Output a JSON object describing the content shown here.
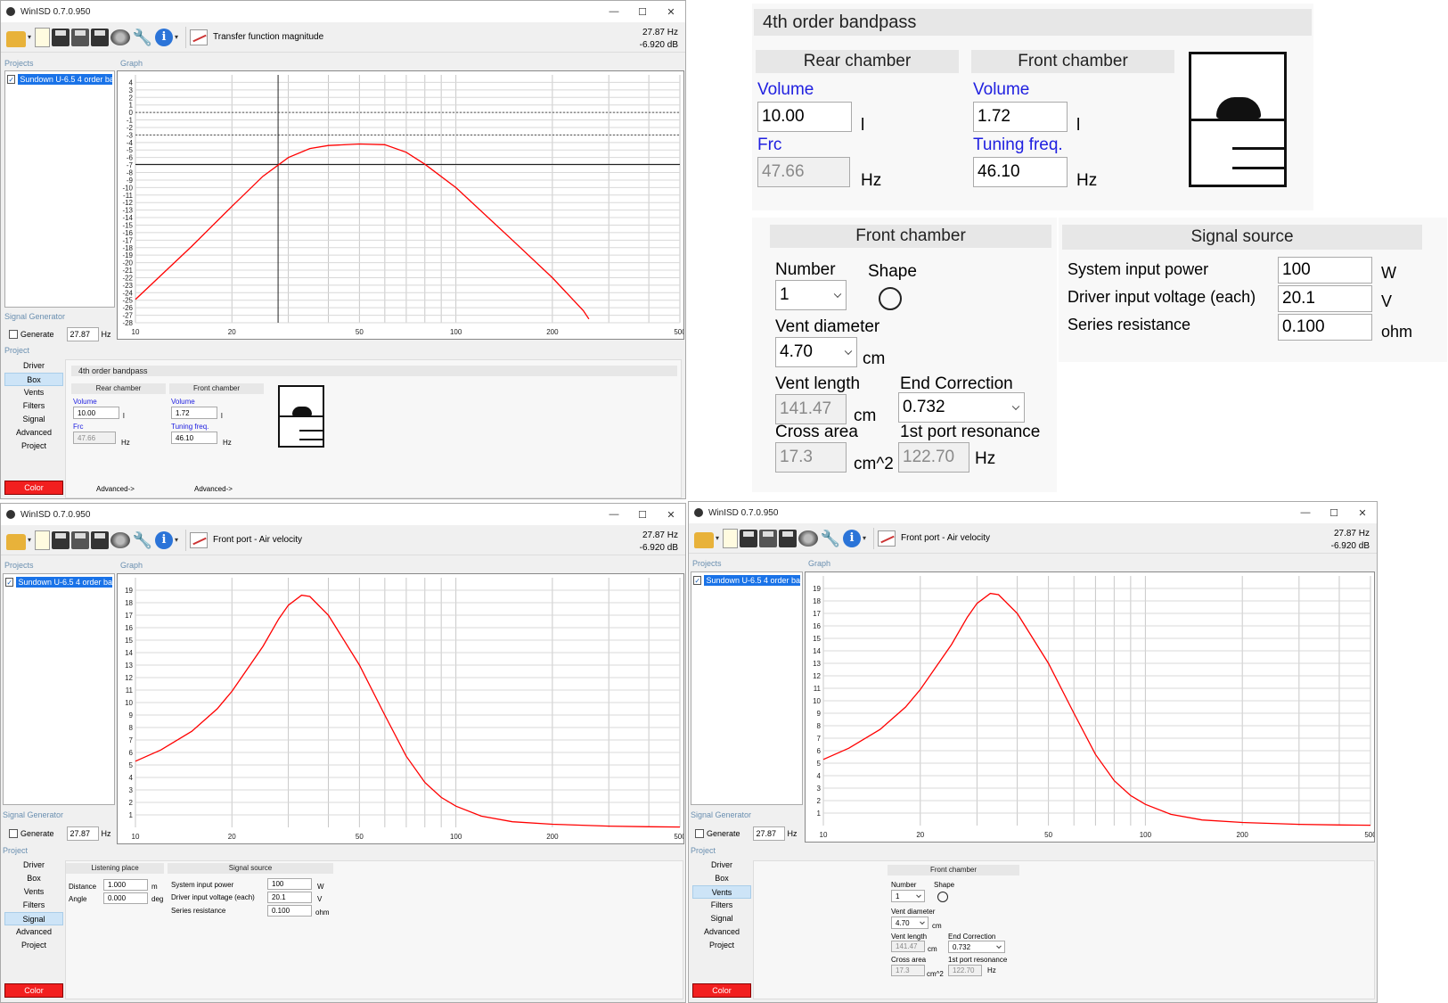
{
  "app_title": "WinISD 0.7.0.950",
  "window_buttons": {
    "min": "—",
    "max": "☐",
    "close": "✕"
  },
  "toolbar": {
    "icons": [
      "open-folder-icon",
      "new-document-icon",
      "save-icon",
      "edit-icon",
      "save-all-icon",
      "driver-icon",
      "wrench-icon",
      "info-icon",
      "chart-icon"
    ],
    "dropdown_glyph": "▾"
  },
  "labels": {
    "projects": "Projects",
    "graph": "Graph",
    "signal_generator": "Signal Generator",
    "generate": "Generate",
    "hz": "Hz",
    "project": "Project",
    "color": "Color",
    "advanced_link": "Advanced->"
  },
  "project_name": "Sundown U-6.5 4 order ban",
  "nav_items": [
    "Driver",
    "Box",
    "Vents",
    "Filters",
    "Signal",
    "Advanced",
    "Project"
  ],
  "readout": {
    "freq": "27.87 Hz",
    "level": "-6.920 dB"
  },
  "siggen_value": "27.87",
  "windows": {
    "w1": {
      "graph_title": "Transfer function magnitude",
      "nav_selected": "Box"
    },
    "w2": {
      "graph_title": "Front port - Air velocity",
      "nav_selected": "Signal"
    },
    "w3": {
      "graph_title": "Front port - Air velocity",
      "nav_selected": "Vents"
    }
  },
  "box": {
    "type": "4th order bandpass",
    "rear_chamber": "Rear chamber",
    "front_chamber": "Front chamber",
    "volume_label": "Volume",
    "rear_volume": "10.00",
    "front_volume": "1.72",
    "volume_unit": "l",
    "frc_label": "Frc",
    "frc": "47.66",
    "tuning_label": "Tuning freq.",
    "tuning": "46.10",
    "hz": "Hz"
  },
  "vents": {
    "section": "Front chamber",
    "number_label": "Number",
    "number": "1",
    "shape_label": "Shape",
    "vent_diameter_label": "Vent diameter",
    "vent_diameter": "4.70",
    "cm": "cm",
    "vent_length_label": "Vent length",
    "vent_length": "141.47",
    "end_correction_label": "End Correction",
    "end_correction": "0.732",
    "cross_area_label": "Cross area",
    "cross_area": "17.3",
    "cm2": "cm^2",
    "port_res_label": "1st port resonance",
    "port_res": "122.70",
    "hz": "Hz"
  },
  "signal": {
    "section": "Signal source",
    "power_label": "System input power",
    "power": "100",
    "power_unit": "W",
    "voltage_label": "Driver input voltage (each)",
    "voltage": "20.1",
    "voltage_unit": "V",
    "resistance_label": "Series resistance",
    "resistance": "0.100",
    "resistance_unit": "ohm"
  },
  "listening": {
    "section": "Listening place",
    "distance_label": "Distance",
    "distance": "1.000",
    "distance_unit": "m",
    "angle_label": "Angle",
    "angle": "0.000",
    "angle_unit": "deg"
  },
  "chart_data": [
    {
      "type": "line",
      "title": "Transfer function magnitude",
      "xlabel": "",
      "ylabel": "",
      "x_scale": "log",
      "xlim": [
        10,
        500
      ],
      "ylim": [
        -28,
        5
      ],
      "x_ticks": [
        "10",
        "20",
        "50",
        "100",
        "200",
        "500"
      ],
      "y_ticks": [
        "4",
        "3",
        "2",
        "1",
        "0",
        "-1",
        "-2",
        "-3",
        "-4",
        "-5",
        "-6",
        "-7",
        "-8",
        "-9",
        "-10",
        "-11",
        "-12",
        "-13",
        "-14",
        "-15",
        "-16",
        "-17",
        "-18",
        "-19",
        "-20",
        "-21",
        "-22",
        "-23",
        "-24",
        "-25",
        "-26",
        "-27",
        "-28"
      ],
      "cursor": {
        "x": 27.87,
        "y": -6.92
      },
      "reference_lines": [
        0,
        -3
      ],
      "series": [
        {
          "color": "#ff0000",
          "points": [
            [
              10,
              -24.9
            ],
            [
              15,
              -17.8
            ],
            [
              20,
              -12.5
            ],
            [
              25,
              -8.5
            ],
            [
              30,
              -6.0
            ],
            [
              35,
              -4.8
            ],
            [
              40,
              -4.4
            ],
            [
              50,
              -4.2
            ],
            [
              60,
              -4.3
            ],
            [
              70,
              -5.3
            ],
            [
              80,
              -6.9
            ],
            [
              100,
              -10.0
            ],
            [
              150,
              -17.0
            ],
            [
              200,
              -22.0
            ],
            [
              250,
              -26.4
            ],
            [
              260,
              -27.5
            ]
          ]
        }
      ]
    },
    {
      "type": "line",
      "title": "Front port - Air velocity",
      "xlabel": "",
      "ylabel": "",
      "x_scale": "log",
      "xlim": [
        10,
        500
      ],
      "ylim": [
        0,
        20
      ],
      "x_ticks": [
        "10",
        "20",
        "50",
        "100",
        "200",
        "500"
      ],
      "y_ticks": [
        "1",
        "2",
        "3",
        "4",
        "5",
        "6",
        "7",
        "8",
        "9",
        "10",
        "11",
        "12",
        "13",
        "14",
        "15",
        "16",
        "17",
        "18",
        "19"
      ],
      "series": [
        {
          "color": "#ff0000",
          "points": [
            [
              10,
              5.3
            ],
            [
              12,
              6.2
            ],
            [
              15,
              7.7
            ],
            [
              18,
              9.5
            ],
            [
              20,
              10.9
            ],
            [
              25,
              14.5
            ],
            [
              28,
              16.7
            ],
            [
              30,
              17.8
            ],
            [
              33,
              18.6
            ],
            [
              35,
              18.5
            ],
            [
              40,
              17.0
            ],
            [
              50,
              13.0
            ],
            [
              60,
              9.0
            ],
            [
              70,
              5.7
            ],
            [
              80,
              3.6
            ],
            [
              90,
              2.4
            ],
            [
              100,
              1.7
            ],
            [
              120,
              0.9
            ],
            [
              150,
              0.45
            ],
            [
              200,
              0.25
            ],
            [
              300,
              0.1
            ],
            [
              400,
              0.05
            ],
            [
              500,
              0.03
            ]
          ]
        }
      ]
    }
  ]
}
